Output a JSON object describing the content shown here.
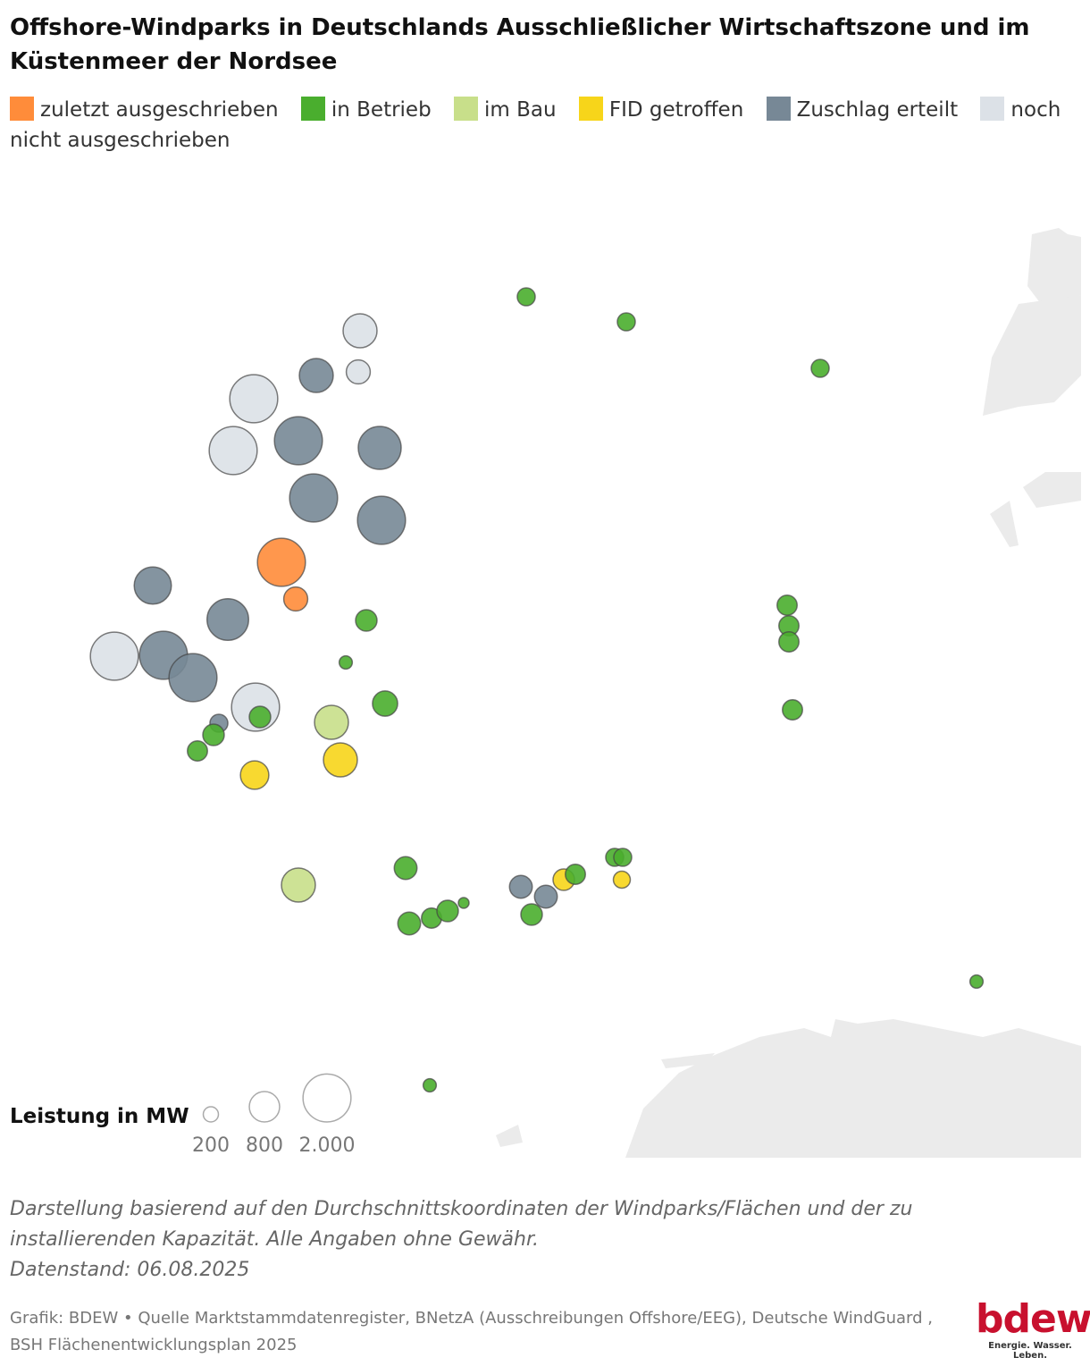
{
  "chart_data": {
    "type": "bubble",
    "title": "Offshore-Windparks in Deutschlands Ausschließlicher Wirtschaftszone und im Küstenmeer der Nordsee",
    "series": [
      {
        "name": "zuletzt ausgeschrieben",
        "color": "#ff8c3a",
        "values": [
          2000,
          500
        ]
      },
      {
        "name": "in Betrieb",
        "color": "#4aae2e",
        "values": [
          280,
          280,
          280,
          400,
          150,
          550,
          400,
          400,
          350,
          350,
          350,
          350,
          350,
          450,
          450,
          350,
          400,
          100,
          400,
          350,
          280,
          280,
          150,
          150
        ]
      },
      {
        "name": "im Bau",
        "color": "#c8df8a",
        "values": [
          1000,
          1000
        ]
      },
      {
        "name": "FID getroffen",
        "color": "#f7d51a",
        "values": [
          1000,
          700,
          400,
          250
        ]
      },
      {
        "name": "Zuschlag erteilt",
        "color": "#778896",
        "values": [
          1000,
          2000,
          1600,
          2000,
          2000,
          1200,
          1500,
          2000,
          2000,
          280,
          450,
          450
        ]
      },
      {
        "name": "noch nicht ausgeschrieben",
        "color": "#dce1e7",
        "values": [
          1000,
          500,
          2000,
          2000,
          2000,
          2000
        ]
      }
    ],
    "size_legend": {
      "title": "Leistung in MW",
      "values": [
        200,
        800,
        {
          "value": 2000,
          "label": "2.000"
        }
      ]
    },
    "notes": [
      "Darstellung basierend auf den Durchschnittskoordinaten der Windparks/Flächen und der zu installierenden Kapazität. Alle Angaben ohne Gewähr.",
      "Datenstand: 06.08.2025"
    ],
    "source": "Grafik: BDEW • Quelle Marktstammdatenregister, BNetzA (Ausschreibungen Offshore/EEG), Deutsche WindGuard , BSH Flächenentwicklungsplan 2025",
    "logo": {
      "name": "bdew",
      "tagline": "Energie. Wasser. Leben."
    }
  }
}
